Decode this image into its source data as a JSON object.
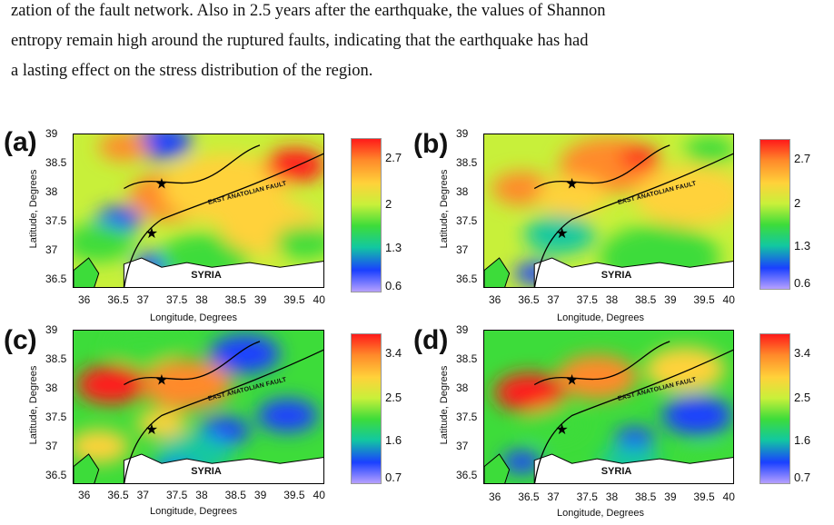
{
  "paragraph": {
    "line1": "zation of the fault network. Also in 2.5 years after the earthquake, the values of Shannon",
    "line2": "entropy remain high around the ruptured faults, indicating that the earthquake has had",
    "line3": "a lasting effect on the stress distribution of the region."
  },
  "figure": {
    "panels": [
      {
        "label": "(a)",
        "colorbar_ticks": [
          "2.7",
          "2",
          "1.3",
          "0.6"
        ]
      },
      {
        "label": "(b)",
        "colorbar_ticks": [
          "2.7",
          "2",
          "1.3",
          "0.6"
        ]
      },
      {
        "label": "(c)",
        "colorbar_ticks": [
          "3.4",
          "2.5",
          "1.6",
          "0.7"
        ]
      },
      {
        "label": "(d)",
        "colorbar_ticks": [
          "3.4",
          "2.5",
          "1.6",
          "0.7"
        ]
      }
    ],
    "x_ticks": [
      "36",
      "36.5",
      "37",
      "37.5",
      "38",
      "38.5",
      "39",
      "39.5",
      "40"
    ],
    "y_ticks": [
      "39",
      "38.5",
      "38",
      "37.5",
      "37",
      "36.5"
    ],
    "xlabel": "Longitude, Degrees",
    "ylabel": "Latitude, Degrees",
    "region_label": "SYRIA",
    "fault_label": "EAST ANATOLIAN FAULT",
    "colormap": [
      "#ff1a1a",
      "#ff8a2a",
      "#ffd23a",
      "#c8f03a",
      "#3ddc3a",
      "#12c8a0",
      "#1a40ff",
      "#b6a0ff"
    ]
  }
}
